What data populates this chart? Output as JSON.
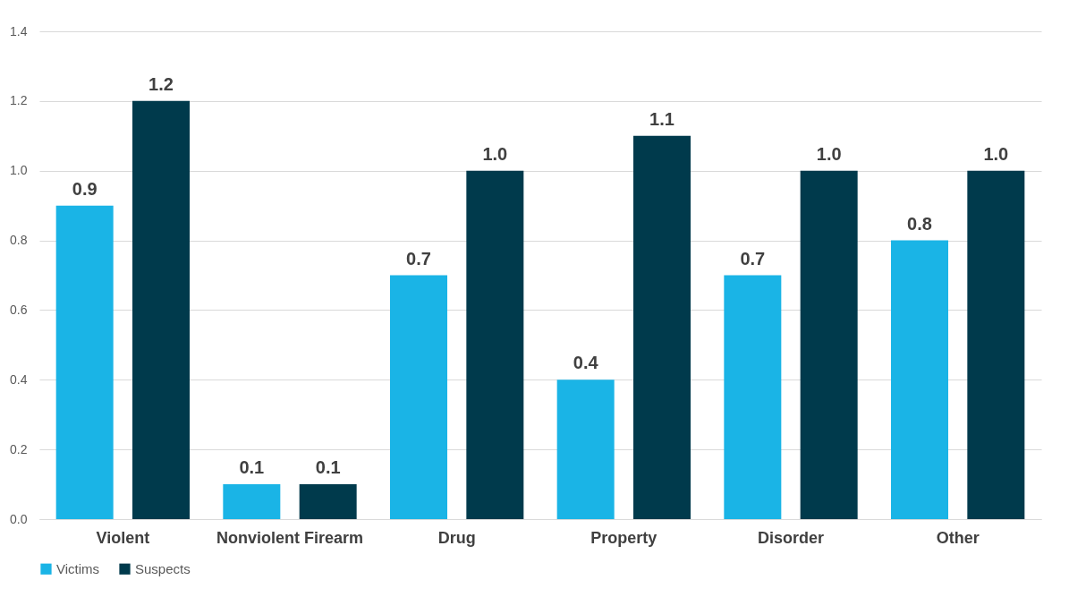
{
  "chart_data": {
    "type": "bar",
    "categories": [
      "Violent",
      "Nonviolent Firearm",
      "Drug",
      "Property",
      "Disorder",
      "Other"
    ],
    "series": [
      {
        "name": "Victims",
        "color": "#1ab4e6",
        "values": [
          0.9,
          0.1,
          0.7,
          0.4,
          0.7,
          0.8
        ],
        "value_labels": [
          "0.9",
          "0.1",
          "0.7",
          "0.4",
          "0.7",
          "0.8"
        ]
      },
      {
        "name": "Suspects",
        "color": "#003a4c",
        "values": [
          1.2,
          0.1,
          1.0,
          1.1,
          1.0,
          1.0
        ],
        "value_labels": [
          "1.2",
          "0.1",
          "1.0",
          "1.1",
          "1.0",
          "1.0"
        ]
      }
    ],
    "ylim": [
      0,
      1.4
    ],
    "yticks": [
      {
        "value": 0,
        "label": "0.0"
      },
      0.2,
      0.4,
      0.6,
      0.8,
      {
        "value": 1,
        "label": "1.0"
      },
      1.2,
      1.4
    ],
    "grid": "y",
    "legend": "bottom"
  }
}
